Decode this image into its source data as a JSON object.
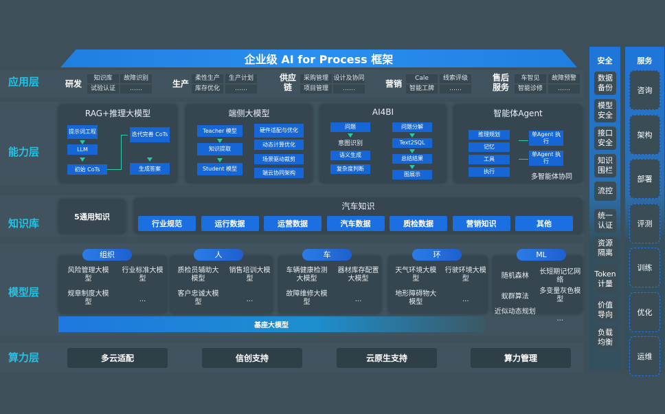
{
  "title": "企业级 AI for Process 框架",
  "layers": {
    "app": "应用层",
    "ability": "能力层",
    "knowledge": "知识库",
    "model": "模型层",
    "compute": "算力层"
  },
  "app_groups": [
    {
      "name": "研发",
      "items": [
        "知识库",
        "试验认证",
        "故障识别",
        "……"
      ]
    },
    {
      "name": "生产",
      "items": [
        "柔性生产",
        "库存优化",
        "生产计划",
        "……"
      ]
    },
    {
      "name": "供应链",
      "items": [
        "采购管理",
        "项目管理",
        "设计及协同",
        "……"
      ]
    },
    {
      "name": "营销",
      "items": [
        "Cale",
        "智能工牌",
        "线索评级",
        "……"
      ]
    },
    {
      "name": "售后服务",
      "items": [
        "车智见",
        "智能诊修",
        "故障预警",
        "……"
      ]
    }
  ],
  "ability": {
    "rag": {
      "title": "RAG+推理大模型",
      "boxes": [
        "提示词工程",
        "LLM",
        "初始 CoTs",
        "迭代完善 CoTs",
        "生成答案"
      ]
    },
    "edge": {
      "title": "端侧大模型",
      "left": [
        "Teacher 模型",
        "知识提取",
        "Student 模型"
      ],
      "right": [
        "硬件适配与优化",
        "动态计算优化",
        "场景驱动裁剪",
        "端云协同架构"
      ]
    },
    "ai4bi": {
      "title": "AI4BI",
      "left": [
        "问题",
        "意图识别",
        "语义生成",
        "复杂度判断"
      ],
      "right": [
        "问题分解",
        "Text2SQL",
        "总结结果",
        "图展示"
      ]
    },
    "agent": {
      "title": "智能体Agent",
      "left": [
        "推理规划",
        "记忆",
        "工具",
        "执行"
      ],
      "right": [
        "单Agent 执行",
        "单Agent 执行"
      ],
      "footer": "多智能体协同"
    }
  },
  "knowledge": {
    "general": "5通用知识",
    "auto_title": "汽车知识",
    "items": [
      "行业规范",
      "运行数据",
      "运营数据",
      "汽车数据",
      "质检数据",
      "营销知识",
      "其他"
    ]
  },
  "models": [
    {
      "tag": "组织",
      "items": [
        "风险管理大模型",
        "行业标准大模型",
        "规章制度大模型",
        "..."
      ]
    },
    {
      "tag": "人",
      "items": [
        "质检员辅助大模型",
        "销售培训大模型",
        "客户忠诚大模型",
        "..."
      ]
    },
    {
      "tag": "车",
      "items": [
        "车辆健康检测大模型",
        "器材库存配置大模型",
        "故障维修大模型",
        "..."
      ]
    },
    {
      "tag": "环",
      "items": [
        "天气环境大模型",
        "行驶环境大模型",
        "地形障碍物大模型",
        "..."
      ]
    },
    {
      "tag": "ML",
      "items": [
        "随机森林",
        "长短期记忆网络",
        "蚁群算法",
        "多变量灰色模型",
        "近似动态规划",
        "..."
      ]
    }
  ],
  "base_model": "基座大模型",
  "compute": [
    "多云适配",
    "信创支持",
    "云原生支持",
    "算力管理"
  ],
  "security": {
    "title": "安全",
    "items": [
      "数据备份",
      "模型安全",
      "接口安全",
      "知识围栏",
      "流控",
      "统一认证",
      "资源隔离",
      "Token计量",
      "价值导向",
      "负载均衡"
    ]
  },
  "service": {
    "title": "服务",
    "items": [
      "咨询",
      "架构",
      "部署",
      "评测",
      "训练",
      "优化",
      "运维"
    ]
  },
  "colors": {
    "accent": "#22c3e6",
    "blue": "#1b6fe0",
    "background": "#3d505a"
  }
}
